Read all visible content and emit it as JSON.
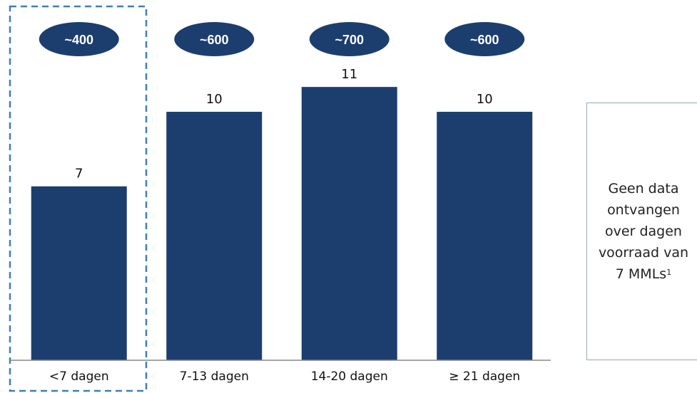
{
  "chart_data": {
    "type": "bar",
    "categories": [
      "<7 dagen",
      "7-13 dagen",
      "14-20 dagen",
      "≥ 21 dagen"
    ],
    "values": [
      7,
      10,
      11,
      10
    ],
    "data_labels": [
      "7",
      "10",
      "11",
      "10"
    ],
    "top_badges": [
      "~400",
      "~600",
      "~700",
      "~600"
    ],
    "highlighted_category": "<7 dagen",
    "ylim": [
      0,
      14.5
    ],
    "grid": false,
    "colors": {
      "bar": "#1b3e6f",
      "badge": "#1b3e6f",
      "badge_text": "#ffffff",
      "highlight_border": "#3d7fbd",
      "axis": "#888888"
    }
  },
  "side_note": {
    "lines": [
      "Geen data",
      "ontvangen",
      "over dagen",
      "voorraad van"
    ],
    "last_line": "7 MMLs",
    "footnote_marker": "1"
  }
}
